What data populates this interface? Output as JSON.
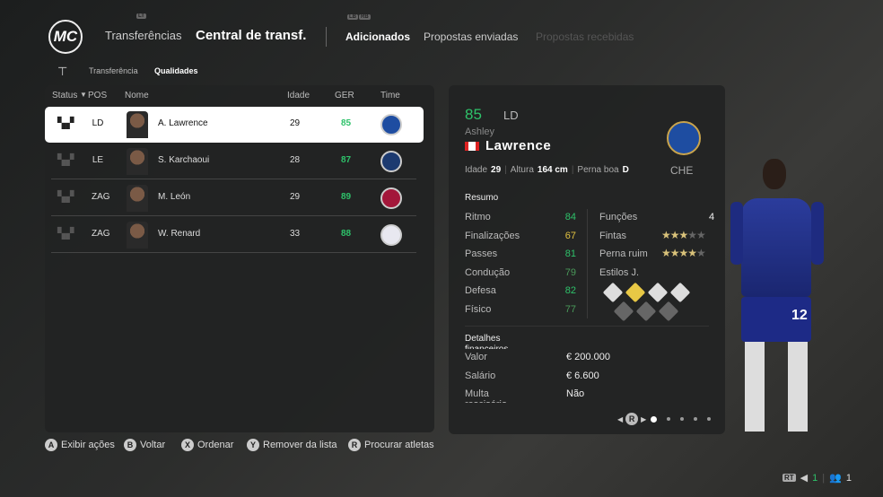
{
  "header": {
    "logo": "MC",
    "hint_lt": "LT",
    "hint_lb": "LB",
    "hint_rb": "RB",
    "transfers": "Transferências",
    "title": "Central de transf.",
    "tabs": [
      {
        "label": "Adicionados",
        "active": true
      },
      {
        "label": "Propostas enviadas"
      },
      {
        "label": "Propostas recebidas",
        "disabled": true
      }
    ]
  },
  "subtabs": [
    "Transferência",
    "Qualidades"
  ],
  "table": {
    "columns": [
      "Status",
      "POS",
      "Nome",
      "Idade",
      "GER",
      "Time"
    ],
    "rows": [
      {
        "pos": "LD",
        "name": "A. Lawrence",
        "age": "29",
        "ger": "85",
        "club": "Chelsea",
        "color": "#1e4da1",
        "gercolor": "#2ec26a"
      },
      {
        "pos": "LE",
        "name": "S. Karchaoui",
        "age": "28",
        "ger": "87",
        "club": "PSG",
        "color": "#1c3a70",
        "gercolor": "#2ec26a"
      },
      {
        "pos": "ZAG",
        "name": "M. León",
        "age": "29",
        "ger": "89",
        "club": "Barcelona",
        "color": "#a3173a",
        "gercolor": "#2ec26a"
      },
      {
        "pos": "ZAG",
        "name": "W. Renard",
        "age": "33",
        "ger": "88",
        "club": "Lyon",
        "color": "#e8e8f0",
        "gercolor": "#2ec26a"
      }
    ]
  },
  "player": {
    "ovr": "85",
    "pos": "LD",
    "first": "Ashley",
    "last": "Lawrence",
    "age_label": "Idade",
    "age": "29",
    "height_label": "Altura",
    "height": "164 cm",
    "foot_label": "Perna boa",
    "foot": "D",
    "club": "CHE",
    "summary_title": "Resumo",
    "stats": [
      {
        "label": "Ritmo",
        "value": "84",
        "color": "#2ec26a"
      },
      {
        "label": "Finalizações",
        "value": "67",
        "color": "#e0c040"
      },
      {
        "label": "Passes",
        "value": "81",
        "color": "#2ec26a"
      },
      {
        "label": "Condução",
        "value": "79",
        "color": "#4a9a5a"
      },
      {
        "label": "Defesa",
        "value": "82",
        "color": "#2ec26a"
      },
      {
        "label": "Físico",
        "value": "77",
        "color": "#4a9a5a"
      }
    ],
    "roles_label": "Funções disponíveis",
    "roles": "4",
    "skill_label": "Fintas",
    "skill_stars": 3,
    "weak_label": "Perna ruim",
    "weak_stars": 4,
    "styles_label": "Estilos J.",
    "fin_title": "Detalhes financeiros",
    "fin": [
      {
        "label": "Valor",
        "value": "€ 200.000"
      },
      {
        "label": "Salário",
        "value": "€ 6.600"
      },
      {
        "label": "Multa rescisória",
        "value": "Não"
      }
    ],
    "page_hint": "R",
    "page": 1,
    "pages": 5,
    "shirt_number": "12"
  },
  "footer": [
    {
      "key": "A",
      "label": "Exibir ações"
    },
    {
      "key": "B",
      "label": "Voltar"
    },
    {
      "key": "X",
      "label": "Ordenar"
    },
    {
      "key": "Y",
      "label": "Remover da lista"
    },
    {
      "key": "R",
      "label": "Procurar atletas"
    }
  ],
  "status": {
    "rt": "RT",
    "count1": "1",
    "count2": "1"
  }
}
